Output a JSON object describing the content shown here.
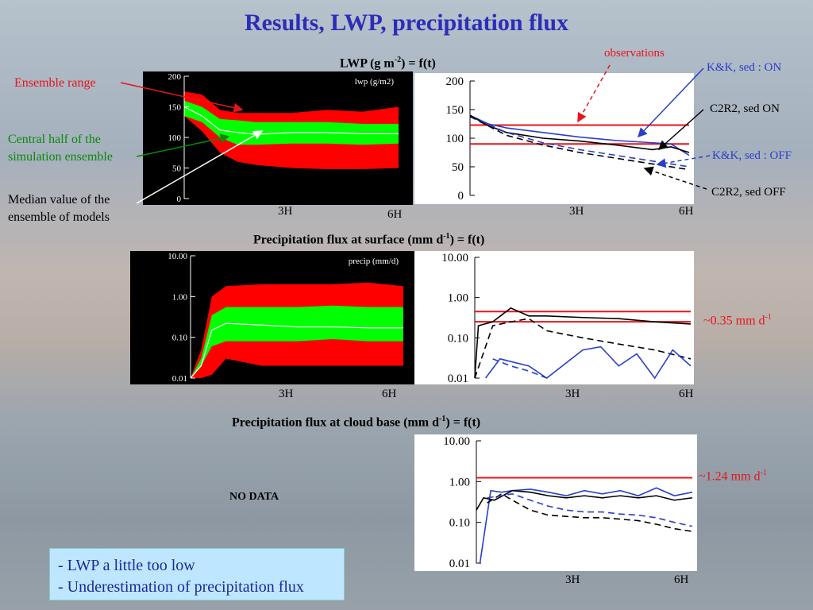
{
  "slide": {
    "title": "Results, LWP, precipitation flux",
    "no_data": "NO DATA",
    "summary": [
      "- LWP a little too low",
      "- Underestimation of precipitation flux"
    ]
  },
  "colors": {
    "title": "#2d2db8",
    "observations": "#e8141c",
    "ensemble_range": "#ff0000",
    "central_half": "#00ff00",
    "model_blue": "#2a3ec8",
    "model_black": "#000000"
  },
  "annotations": {
    "ensemble_range": "Ensemble range",
    "central_half": [
      "Central half of the",
      "simulation ensemble"
    ],
    "median": [
      "Median value of the",
      "ensemble of models"
    ],
    "observations": "observations",
    "kk_sed_on": "K&K, sed : ON",
    "c2r2_sed_on": "C2R2, sed ON",
    "kk_sed_off": "K&K, sed : OFF",
    "c2r2_sed_off": "C2R2, sed OFF",
    "surface_value": "~0.35 mm d",
    "surface_value_exp": "-1",
    "cloudbase_value": "~1.24 mm d",
    "cloudbase_value_exp": "-1"
  },
  "rows": {
    "lwp": {
      "title_pre": "LWP (g m",
      "title_sup": "-2",
      "title_post": ") = f(t)"
    },
    "surface": {
      "title_pre": "Precipitation flux at surface (mm d",
      "title_sup": "-1",
      "title_post": ") = f(t)"
    },
    "cloudbase": {
      "title_pre": "Precipitation flux at cloud base (mm d",
      "title_sup": "-1",
      "title_post": ") = f(t)"
    }
  },
  "time_labels": [
    "3H",
    "6H"
  ],
  "chart_data": [
    {
      "type": "area",
      "panel": "lwp-ensemble",
      "title": "lwp (g/m2)",
      "ylim": [
        0,
        200
      ],
      "y_ticks": [
        "200",
        "150",
        "100",
        "50",
        "0"
      ],
      "x_hours": [
        0,
        0.5,
        1,
        1.5,
        2,
        3,
        4,
        5,
        6
      ],
      "range_low": [
        135,
        110,
        75,
        60,
        55,
        50,
        48,
        48,
        50
      ],
      "range_high": [
        175,
        170,
        145,
        140,
        140,
        140,
        145,
        142,
        150
      ],
      "central_low": [
        135,
        125,
        100,
        88,
        88,
        90,
        90,
        88,
        90
      ],
      "central_high": [
        160,
        150,
        130,
        128,
        125,
        125,
        125,
        122,
        122
      ],
      "median": [
        150,
        135,
        112,
        108,
        105,
        108,
        108,
        106,
        106
      ]
    },
    {
      "type": "line",
      "panel": "lwp-models",
      "ylim": [
        0,
        200
      ],
      "y_ticks": [
        "200",
        "150",
        "100",
        "50",
        "0"
      ],
      "observations": [
        123,
        90
      ],
      "series": [
        {
          "label": "K&K, sed : ON",
          "x": [
            0,
            0.5,
            1,
            2,
            3,
            4,
            5,
            5.5,
            6
          ],
          "y": [
            140,
            125,
            118,
            110,
            102,
            96,
            92,
            90,
            70
          ]
        },
        {
          "label": "C2R2, sed ON",
          "x": [
            0,
            0.5,
            1,
            2,
            3,
            4,
            5,
            5.5,
            6
          ],
          "y": [
            140,
            122,
            110,
            100,
            95,
            88,
            80,
            85,
            75
          ]
        },
        {
          "label": "K&K, sed : OFF",
          "x": [
            0,
            1,
            2,
            3,
            4,
            5,
            6
          ],
          "y": [
            138,
            110,
            92,
            80,
            70,
            60,
            50
          ]
        },
        {
          "label": "C2R2, sed OFF",
          "x": [
            0,
            1,
            2,
            3,
            4,
            5,
            6
          ],
          "y": [
            138,
            105,
            88,
            75,
            65,
            55,
            45
          ]
        }
      ]
    },
    {
      "type": "area",
      "panel": "surface-ensemble",
      "title": "precip (mm/d)",
      "yscale": "log",
      "ylim": [
        0.01,
        10
      ],
      "y_ticks": [
        "10.00",
        "1.00",
        "0.10",
        "0.01"
      ],
      "x_hours": [
        0,
        0.3,
        0.6,
        1,
        2,
        3,
        4,
        5,
        6
      ],
      "range_low": [
        0.01,
        0.01,
        0.012,
        0.03,
        0.02,
        0.02,
        0.02,
        0.02,
        0.02
      ],
      "range_high": [
        0.01,
        0.05,
        1.0,
        1.8,
        2.0,
        2.0,
        2.0,
        2.2,
        1.8
      ],
      "central_low": [
        0.01,
        0.02,
        0.06,
        0.08,
        0.08,
        0.08,
        0.09,
        0.08,
        0.08
      ],
      "central_high": [
        0.01,
        0.03,
        0.35,
        0.55,
        0.55,
        0.55,
        0.6,
        0.55,
        0.55
      ],
      "median": [
        0.01,
        0.02,
        0.15,
        0.22,
        0.2,
        0.18,
        0.18,
        0.17,
        0.17
      ]
    },
    {
      "type": "line",
      "panel": "surface-models",
      "yscale": "log",
      "ylim": [
        0.01,
        10
      ],
      "y_ticks": [
        "10.00",
        "1.00",
        "0.10",
        "0.01"
      ],
      "observations": [
        0.45,
        0.25
      ],
      "series": [
        {
          "label": "C2R2, sed ON",
          "x": [
            0,
            0.1,
            0.5,
            1,
            1.5,
            2,
            3,
            4,
            5,
            6
          ],
          "y": [
            0.01,
            0.2,
            0.25,
            0.55,
            0.35,
            0.35,
            0.32,
            0.3,
            0.25,
            0.22
          ]
        },
        {
          "label": "C2R2, sed OFF",
          "x": [
            0,
            0.5,
            1,
            1.5,
            2,
            3,
            4,
            5,
            6
          ],
          "y": [
            0.01,
            0.2,
            0.25,
            0.3,
            0.15,
            0.1,
            0.07,
            0.05,
            0.03
          ]
        },
        {
          "label": "K&K, sed : ON",
          "x": [
            0.3,
            0.7,
            1.5,
            2,
            3,
            3.5,
            4,
            4.5,
            5,
            5.5,
            6
          ],
          "y": [
            0.01,
            0.03,
            0.02,
            0.01,
            0.05,
            0.06,
            0.02,
            0.04,
            0.01,
            0.05,
            0.02
          ]
        },
        {
          "label": "K&K, sed : OFF",
          "x": [
            0.5,
            1,
            1.5,
            2
          ],
          "y": [
            0.03,
            0.02,
            0.015,
            0.01
          ]
        }
      ]
    },
    {
      "type": "line",
      "panel": "cloudbase-models",
      "yscale": "log",
      "ylim": [
        0.01,
        10
      ],
      "y_ticks": [
        "10.00",
        "1.00",
        "0.10",
        "0.01"
      ],
      "observations": [
        1.24
      ],
      "series": [
        {
          "label": "K&K, sed : ON",
          "x": [
            0.1,
            0.4,
            0.7,
            1,
            1.5,
            2,
            2.5,
            3,
            3.5,
            4,
            4.5,
            5,
            5.5,
            6
          ],
          "y": [
            0.01,
            0.6,
            0.55,
            0.6,
            0.65,
            0.55,
            0.45,
            0.6,
            0.5,
            0.6,
            0.45,
            0.7,
            0.45,
            0.55
          ]
        },
        {
          "label": "C2R2, sed ON",
          "x": [
            0,
            0.2,
            0.5,
            1,
            1.5,
            2,
            2.5,
            3,
            3.5,
            4,
            4.5,
            5,
            5.5,
            6
          ],
          "y": [
            0.2,
            0.4,
            0.35,
            0.6,
            0.55,
            0.45,
            0.4,
            0.45,
            0.4,
            0.45,
            0.4,
            0.45,
            0.35,
            0.4
          ]
        },
        {
          "label": "C2R2, sed OFF",
          "x": [
            0.3,
            0.7,
            1,
            1.5,
            2,
            2.5,
            3,
            3.5,
            4,
            4.5,
            5,
            5.5,
            6
          ],
          "y": [
            0.3,
            0.5,
            0.35,
            0.2,
            0.15,
            0.14,
            0.13,
            0.13,
            0.12,
            0.11,
            0.09,
            0.07,
            0.06
          ]
        },
        {
          "label": "K&K, sed : OFF",
          "x": [
            0.3,
            0.7,
            1,
            1.5,
            2,
            2.5,
            3,
            3.5,
            4,
            4.5,
            5,
            5.5,
            6
          ],
          "y": [
            0.4,
            0.45,
            0.5,
            0.35,
            0.25,
            0.2,
            0.18,
            0.18,
            0.16,
            0.15,
            0.13,
            0.1,
            0.08
          ]
        }
      ]
    }
  ]
}
